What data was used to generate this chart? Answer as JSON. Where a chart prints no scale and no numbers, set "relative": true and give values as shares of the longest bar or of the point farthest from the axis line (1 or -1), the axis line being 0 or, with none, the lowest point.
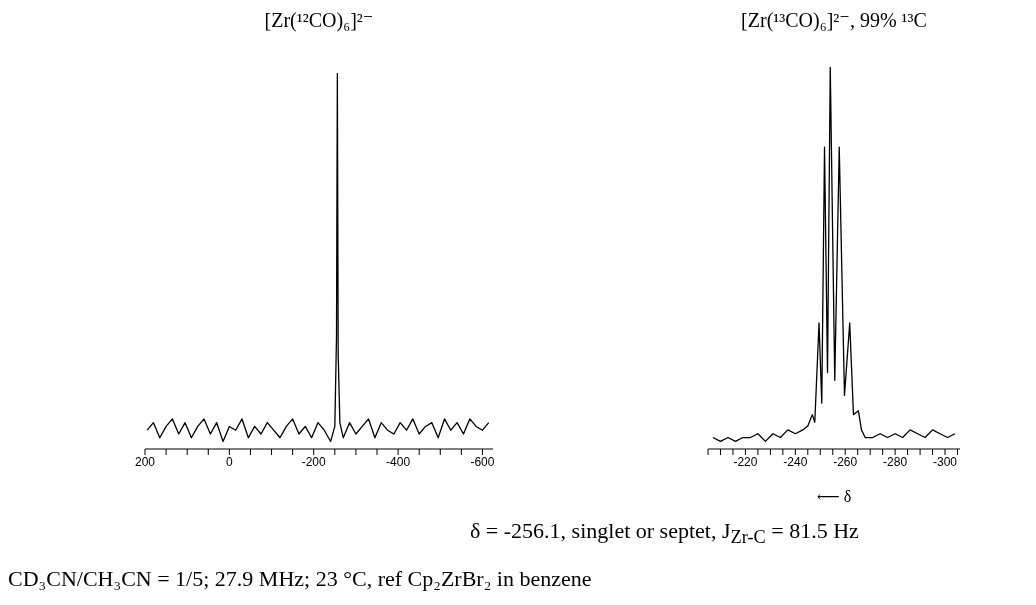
{
  "chart_data": [
    {
      "type": "line",
      "title": "[Zr(¹²CO)₆]²⁻",
      "relative": true,
      "xlim": [
        200,
        -625
      ],
      "xticks": [
        200,
        {
          "value": 150,
          "label": null
        },
        {
          "value": 100,
          "label": null
        },
        {
          "value": 50,
          "label": null
        },
        0,
        {
          "value": -50,
          "label": null
        },
        {
          "value": -100,
          "label": null
        },
        {
          "value": -150,
          "label": null
        },
        -200,
        {
          "value": -250,
          "label": null
        },
        {
          "value": -300,
          "label": null
        },
        {
          "value": -350,
          "label": null
        },
        -400,
        {
          "value": -450,
          "label": null
        },
        {
          "value": -500,
          "label": null
        },
        {
          "value": -550,
          "label": null
        },
        -600
      ],
      "series": [
        {
          "color": "#000000",
          "x": [
            195,
            180,
            165,
            150,
            135,
            120,
            105,
            90,
            75,
            60,
            45,
            30,
            15,
            0,
            -15,
            -30,
            -45,
            -60,
            -75,
            -90,
            -105,
            -120,
            -135,
            -150,
            -165,
            -180,
            -195,
            -210,
            -225,
            -240,
            -250,
            -254,
            -256,
            -258,
            -262,
            -270,
            -285,
            -300,
            -315,
            -330,
            -345,
            -360,
            -375,
            -390,
            -405,
            -420,
            -435,
            -450,
            -465,
            -480,
            -495,
            -510,
            -525,
            -540,
            -555,
            -570,
            -585,
            -600,
            -615
          ],
          "values": [
            0.05,
            0.07,
            0.03,
            0.06,
            0.08,
            0.04,
            0.07,
            0.03,
            0.06,
            0.08,
            0.04,
            0.07,
            0.02,
            0.06,
            0.05,
            0.08,
            0.03,
            0.06,
            0.04,
            0.07,
            0.05,
            0.03,
            0.06,
            0.08,
            0.04,
            0.06,
            0.03,
            0.07,
            0.05,
            0.02,
            0.06,
            0.3,
            1,
            0.25,
            0.07,
            0.03,
            0.07,
            0.04,
            0.06,
            0.08,
            0.03,
            0.07,
            0.05,
            0.04,
            0.07,
            0.05,
            0.08,
            0.04,
            0.06,
            0.07,
            0.03,
            0.08,
            0.05,
            0.07,
            0.04,
            0.08,
            0.06,
            0.05,
            0.07
          ]
        }
      ]
    },
    {
      "type": "line",
      "title": "[Zr(¹³CO)₆]²⁻, 99% ¹³C",
      "xlabel": "⟵ δ",
      "relative": true,
      "xlim": [
        -205,
        -306
      ],
      "xticks": [
        {
          "value": -205,
          "label": null
        },
        {
          "value": -210,
          "label": null
        },
        {
          "value": -215,
          "label": null
        },
        -220,
        {
          "value": -225,
          "label": null
        },
        {
          "value": -230,
          "label": null
        },
        {
          "value": -235,
          "label": null
        },
        -240,
        {
          "value": -245,
          "label": null
        },
        {
          "value": -250,
          "label": null
        },
        {
          "value": -255,
          "label": null
        },
        -260,
        {
          "value": -265,
          "label": null
        },
        {
          "value": -270,
          "label": null
        },
        {
          "value": -275,
          "label": null
        },
        -280,
        {
          "value": -285,
          "label": null
        },
        {
          "value": -290,
          "label": null
        },
        {
          "value": -295,
          "label": null
        },
        -300,
        {
          "value": -305,
          "label": null
        }
      ],
      "series": [
        {
          "color": "#000000",
          "x": [
            -207,
            -210,
            -213,
            -216,
            -219,
            -222,
            -225,
            -228,
            -231,
            -234,
            -237,
            -240,
            -243,
            -245,
            -246.8,
            -247.8,
            -249.5,
            -250.6,
            -251.7,
            -252.9,
            -254,
            -255.8,
            -257.6,
            -259.7,
            -261.8,
            -263.3,
            -265.3,
            -266.5,
            -268,
            -271,
            -274,
            -277,
            -280,
            -283,
            -286,
            -289,
            -292,
            -295,
            -298,
            -301,
            -304
          ],
          "values": [
            0.03,
            0.02,
            0.03,
            0.02,
            0.03,
            0.03,
            0.04,
            0.02,
            0.04,
            0.03,
            0.05,
            0.04,
            0.05,
            0.06,
            0.09,
            0.07,
            0.33,
            0.12,
            0.79,
            0.2,
            1,
            0.18,
            0.79,
            0.14,
            0.33,
            0.09,
            0.1,
            0.05,
            0.03,
            0.03,
            0.04,
            0.03,
            0.04,
            0.03,
            0.05,
            0.04,
            0.03,
            0.05,
            0.04,
            0.03,
            0.04
          ]
        }
      ],
      "annotations": [
        "δ = -256.1, singlet or septet, J$_{Zr-C}$ = 81.5 Hz",
        "CD₃CN/CH₃CN = 1/5; 27.9 MHz; 23 °C, ref Cp₂ZrBr₂ in benzene"
      ]
    }
  ]
}
